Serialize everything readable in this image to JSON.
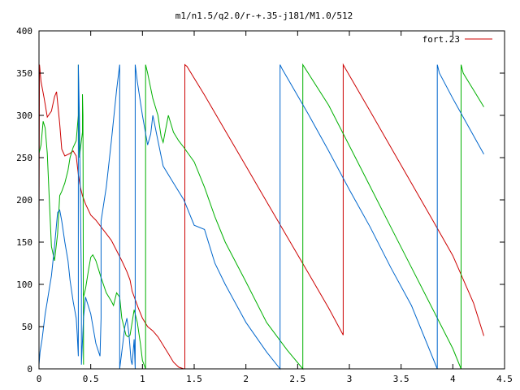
{
  "chart_data": {
    "type": "line",
    "title": "m1/n1.5/q2.0/r-+.35-j181/M1.0/512",
    "xlabel": "",
    "ylabel": "",
    "xlim": [
      0,
      4.5
    ],
    "ylim": [
      0,
      400
    ],
    "grid": false,
    "legend_position": "top-right",
    "x_ticks": [
      0,
      0.5,
      1,
      1.5,
      2,
      2.5,
      3,
      3.5,
      4,
      4.5
    ],
    "x_tick_labels": [
      "0",
      "0.5",
      "1",
      "1.5",
      "2",
      "2.5",
      "3",
      "3.5",
      "4",
      "4.5"
    ],
    "y_ticks": [
      0,
      50,
      100,
      150,
      200,
      250,
      300,
      350,
      400
    ],
    "y_tick_labels": [
      "0",
      "50",
      "100",
      "150",
      "200",
      "250",
      "300",
      "350",
      "400"
    ],
    "series": [
      {
        "name": "fort.23",
        "color": "#cc0000",
        "x": [
          0,
          0.005,
          0.02,
          0.05,
          0.08,
          0.12,
          0.15,
          0.17,
          0.2,
          0.22,
          0.25,
          0.3,
          0.33,
          0.36,
          0.38,
          0.4,
          0.42,
          0.45,
          0.5,
          0.55,
          0.6,
          0.65,
          0.7,
          0.75,
          0.8,
          0.85,
          0.88,
          0.9,
          0.93,
          0.96,
          1.0,
          1.05,
          1.1,
          1.15,
          1.2,
          1.25,
          1.3,
          1.35,
          1.4,
          1.41,
          1.41,
          1.43,
          1.6,
          1.8,
          2.0,
          2.2,
          2.4,
          2.6,
          2.8,
          2.94,
          2.94,
          2.95,
          3.2,
          3.5,
          3.8,
          4.0,
          4.2,
          4.3
        ],
        "y": [
          170,
          360,
          340,
          320,
          298,
          305,
          322,
          328,
          290,
          260,
          252,
          255,
          258,
          252,
          230,
          215,
          205,
          195,
          182,
          176,
          168,
          160,
          152,
          140,
          128,
          115,
          105,
          92,
          82,
          72,
          60,
          50,
          45,
          38,
          28,
          18,
          8,
          2,
          0,
          0,
          360,
          358,
          324,
          282,
          240,
          198,
          156,
          114,
          72,
          40,
          360,
          358,
          305,
          241,
          177,
          134,
          78,
          39
        ]
      },
      {
        "name": "",
        "color": "#00b000",
        "x": [
          0,
          0.02,
          0.04,
          0.06,
          0.08,
          0.1,
          0.12,
          0.15,
          0.18,
          0.2,
          0.22,
          0.25,
          0.28,
          0.3,
          0.33,
          0.36,
          0.38,
          0.38,
          0.385,
          0.39,
          0.4,
          0.42,
          0.42,
          0.425,
          0.43,
          0.43,
          0.45,
          0.48,
          0.5,
          0.52,
          0.55,
          0.6,
          0.65,
          0.7,
          0.72,
          0.75,
          0.78,
          0.8,
          0.84,
          0.86,
          0.88,
          0.9,
          0.92,
          0.95,
          0.98,
          1.0,
          1.03,
          1.03,
          1.05,
          1.08,
          1.1,
          1.15,
          1.18,
          1.2,
          1.25,
          1.3,
          1.35,
          1.4,
          1.5,
          1.6,
          1.7,
          1.8,
          2.0,
          2.2,
          2.4,
          2.55,
          2.55,
          2.56,
          2.8,
          3.0,
          3.2,
          3.4,
          3.6,
          3.8,
          4.0,
          4.08,
          4.08,
          4.1,
          4.2,
          4.3
        ],
        "y": [
          255,
          265,
          293,
          285,
          255,
          200,
          145,
          128,
          160,
          205,
          210,
          220,
          235,
          250,
          262,
          270,
          300,
          360,
          300,
          250,
          260,
          280,
          325,
          300,
          5,
          85,
          95,
          118,
          132,
          135,
          128,
          108,
          90,
          80,
          75,
          90,
          85,
          60,
          40,
          38,
          40,
          55,
          70,
          55,
          30,
          10,
          0,
          360,
          350,
          332,
          320,
          300,
          275,
          268,
          300,
          280,
          270,
          262,
          245,
          215,
          180,
          150,
          103,
          55,
          22,
          0,
          360,
          358,
          312,
          264,
          216,
          168,
          120,
          72,
          24,
          0,
          360,
          350,
          330,
          310
        ]
      },
      {
        "name": "",
        "color": "#0066cc",
        "x": [
          0,
          0.01,
          0.03,
          0.06,
          0.08,
          0.1,
          0.12,
          0.15,
          0.18,
          0.2,
          0.22,
          0.25,
          0.28,
          0.3,
          0.33,
          0.36,
          0.37,
          0.38,
          0.38,
          0.39,
          0.4,
          0.41,
          0.41,
          0.43,
          0.45,
          0.5,
          0.55,
          0.59,
          0.6,
          0.6,
          0.65,
          0.7,
          0.75,
          0.78,
          0.78,
          0.8,
          0.83,
          0.85,
          0.87,
          0.89,
          0.9,
          0.92,
          0.93,
          0.93,
          0.95,
          1.0,
          1.05,
          1.08,
          1.1,
          1.15,
          1.2,
          1.3,
          1.4,
          1.5,
          1.6,
          1.7,
          1.8,
          2.0,
          2.2,
          2.33,
          2.33,
          2.35,
          2.6,
          2.8,
          3.0,
          3.2,
          3.4,
          3.6,
          3.85,
          3.85,
          3.87,
          4.0,
          4.3
        ],
        "y": [
          5,
          20,
          35,
          65,
          80,
          95,
          110,
          145,
          185,
          188,
          175,
          150,
          128,
          105,
          80,
          60,
          40,
          15,
          360,
          300,
          200,
          100,
          5,
          60,
          85,
          65,
          30,
          15,
          60,
          175,
          215,
          270,
          330,
          360,
          0,
          20,
          50,
          60,
          40,
          10,
          5,
          35,
          0,
          360,
          340,
          300,
          265,
          278,
          300,
          270,
          240,
          220,
          200,
          170,
          165,
          125,
          100,
          55,
          20,
          0,
          360,
          355,
          302,
          258,
          212,
          168,
          120,
          75,
          0,
          360,
          350,
          320,
          254
        ]
      }
    ]
  }
}
